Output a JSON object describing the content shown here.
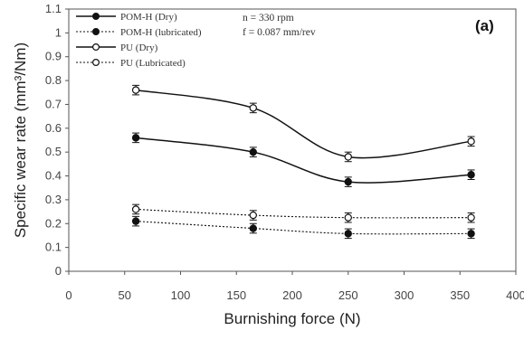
{
  "chart_data": {
    "type": "line",
    "panel_label": "(a)",
    "xlabel": "Burnishing force (N)",
    "ylabel": "Specific wear rate (mm³/Nm)",
    "xlim": [
      0,
      400
    ],
    "ylim": [
      0,
      1.1
    ],
    "xticks": [
      "0",
      "50",
      "100",
      "150",
      "200",
      "250",
      "300",
      "350",
      "400"
    ],
    "yticks": [
      "0",
      "0.1",
      "0.2",
      "0.3",
      "0.4",
      "0.5",
      "0.6",
      "0.7",
      "0.8",
      "0.9",
      "1",
      "1.1"
    ],
    "x": [
      60,
      165,
      250,
      360
    ],
    "series": [
      {
        "name": "POM-H (Dry)",
        "values": [
          0.56,
          0.5,
          0.375,
          0.405
        ],
        "errors": [
          0.02,
          0.02,
          0.02,
          0.02
        ],
        "style": "solid",
        "marker": "filled"
      },
      {
        "name": "POM-H (lubricated)",
        "values": [
          0.21,
          0.18,
          0.158,
          0.158
        ],
        "errors": [
          0.02,
          0.02,
          0.02,
          0.02
        ],
        "style": "dotted",
        "marker": "filled"
      },
      {
        "name": "PU (Dry)",
        "values": [
          0.76,
          0.685,
          0.48,
          0.545
        ],
        "errors": [
          0.02,
          0.02,
          0.02,
          0.02
        ],
        "style": "solid",
        "marker": "open"
      },
      {
        "name": "PU (Lubricated)",
        "values": [
          0.26,
          0.235,
          0.225,
          0.225
        ],
        "errors": [
          0.02,
          0.02,
          0.02,
          0.02
        ],
        "style": "dotted",
        "marker": "open"
      }
    ],
    "conditions": [
      "n = 330 rpm",
      "f = 0.087 mm/rev"
    ],
    "grid": false,
    "legend_position": "top-left"
  }
}
